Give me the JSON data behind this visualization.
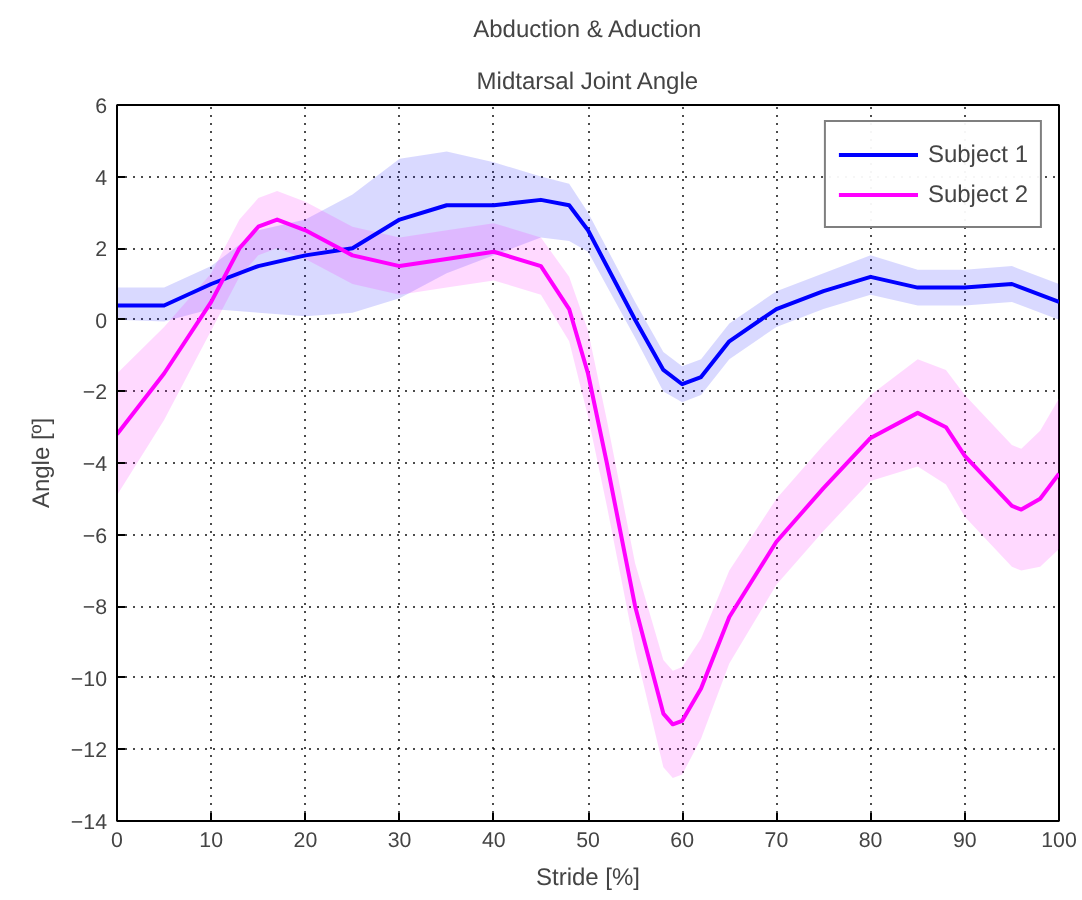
{
  "chart_data": {
    "type": "line",
    "title": "Abduction & Aduction",
    "subtitle": "Midtarsal Joint Angle",
    "xlabel": "Stride [%]",
    "ylabel": "Angle [º]",
    "xlim": [
      0,
      100
    ],
    "xticks": [
      0,
      10,
      20,
      30,
      40,
      50,
      60,
      70,
      80,
      90,
      100
    ],
    "ylim": [
      -14,
      6
    ],
    "yticks": [
      -14,
      -12,
      -10,
      -8,
      -6,
      -4,
      -2,
      0,
      2,
      4,
      6
    ],
    "grid": true,
    "legend": "top right",
    "line_style": "solid",
    "marker": "none",
    "series": [
      {
        "name": "Subject 1",
        "color": "#0000ff",
        "x": [
          0,
          5,
          10,
          15,
          20,
          25,
          30,
          35,
          40,
          45,
          48,
          50,
          55,
          58,
          60,
          62,
          65,
          70,
          75,
          80,
          85,
          90,
          95,
          100
        ],
        "values": [
          0.4,
          0.4,
          1.0,
          1.5,
          1.8,
          2.0,
          2.8,
          3.2,
          3.2,
          3.35,
          3.2,
          2.5,
          0.0,
          -1.4,
          -1.8,
          -1.6,
          -0.6,
          0.3,
          0.8,
          1.2,
          0.9,
          0.9,
          1.0,
          0.5
        ],
        "upper": [
          0.9,
          0.9,
          1.5,
          2.5,
          2.8,
          3.5,
          4.5,
          4.7,
          4.4,
          4.0,
          3.8,
          3.0,
          0.5,
          -0.9,
          -1.3,
          -1.1,
          -0.1,
          0.8,
          1.3,
          1.8,
          1.4,
          1.4,
          1.5,
          1.0
        ],
        "lower": [
          0.0,
          -0.05,
          0.3,
          0.2,
          0.1,
          0.2,
          0.6,
          1.3,
          1.8,
          2.3,
          2.2,
          1.9,
          -0.5,
          -2.0,
          -2.3,
          -2.1,
          -1.1,
          -0.2,
          0.3,
          0.7,
          0.4,
          0.4,
          0.5,
          0.0
        ]
      },
      {
        "name": "Subject 2",
        "color": "#ff00ff",
        "x": [
          0,
          5,
          10,
          13,
          15,
          17,
          20,
          25,
          30,
          35,
          40,
          45,
          48,
          50,
          52,
          55,
          58,
          59,
          60,
          62,
          65,
          70,
          75,
          80,
          85,
          88,
          90,
          95,
          96,
          98,
          100
        ],
        "values": [
          -3.2,
          -1.5,
          0.5,
          2.0,
          2.6,
          2.8,
          2.5,
          1.8,
          1.5,
          1.7,
          1.9,
          1.5,
          0.3,
          -1.5,
          -4.0,
          -8.0,
          -11.0,
          -11.3,
          -11.2,
          -10.3,
          -8.3,
          -6.2,
          -4.7,
          -3.3,
          -2.6,
          -3.0,
          -3.8,
          -5.2,
          -5.3,
          -5.0,
          -4.3
        ],
        "upper": [
          -1.5,
          -0.2,
          1.3,
          2.8,
          3.4,
          3.6,
          3.3,
          2.6,
          2.3,
          2.5,
          2.7,
          2.3,
          1.2,
          -0.3,
          -2.8,
          -6.8,
          -9.5,
          -9.8,
          -9.7,
          -8.9,
          -7.0,
          -5.0,
          -3.5,
          -2.1,
          -1.1,
          -1.4,
          -2.1,
          -3.5,
          -3.6,
          -3.1,
          -2.2
        ],
        "lower": [
          -4.9,
          -2.8,
          -0.3,
          1.2,
          1.8,
          2.0,
          1.7,
          1.0,
          0.7,
          0.9,
          1.1,
          0.7,
          -0.6,
          -2.7,
          -5.2,
          -9.2,
          -12.5,
          -12.8,
          -12.7,
          -11.7,
          -9.6,
          -7.4,
          -5.9,
          -4.5,
          -4.1,
          -4.6,
          -5.5,
          -6.9,
          -7.0,
          -6.9,
          -6.4
        ]
      }
    ]
  }
}
